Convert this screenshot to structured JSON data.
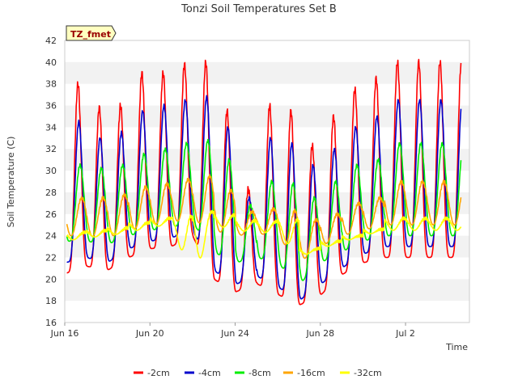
{
  "chart_data": {
    "type": "line",
    "title": "Tonzi Soil Temperatures Set B",
    "xlabel": "Time",
    "ylabel": "Soil Temperature (C)",
    "site_badge": "TZ_fmet",
    "ylim": [
      16,
      42
    ],
    "yticks": [
      16,
      18,
      20,
      22,
      24,
      26,
      28,
      30,
      32,
      34,
      36,
      38,
      40,
      42
    ],
    "x_range_days": [
      0,
      19
    ],
    "xticks": [
      {
        "day": 0,
        "label": "Jun 16"
      },
      {
        "day": 4,
        "label": "Jun 20"
      },
      {
        "day": 8,
        "label": "Jun 24"
      },
      {
        "day": 12,
        "label": "Jun 28"
      },
      {
        "day": 16,
        "label": "Jul 2"
      }
    ],
    "grid": "horizontal bands",
    "legend_position": "bottom",
    "series": [
      {
        "name": "-2cm",
        "color": "#ff0000",
        "daily_max": [
          38.0,
          35.8,
          36.0,
          39.0,
          39.0,
          39.8,
          40.0,
          35.5,
          28.3,
          36.0,
          35.5,
          32.3,
          35.0,
          37.5,
          38.5,
          40.0
        ],
        "daily_min": [
          20.5,
          21.2,
          20.8,
          22.0,
          22.8,
          23.0,
          24.0,
          20.0,
          18.8,
          19.6,
          18.6,
          17.6,
          18.5,
          20.4,
          21.5,
          22.0
        ]
      },
      {
        "name": "-4cm",
        "color": "#0000cc",
        "daily_max": [
          34.5,
          33.0,
          33.5,
          35.5,
          36.0,
          36.5,
          36.8,
          34.0,
          27.5,
          33.0,
          32.5,
          30.5,
          32.0,
          34.0,
          35.0,
          36.5
        ],
        "daily_min": [
          21.5,
          22.0,
          21.5,
          22.8,
          23.5,
          23.8,
          24.5,
          20.8,
          19.5,
          20.3,
          19.3,
          18.0,
          19.5,
          21.0,
          22.3,
          23.0
        ]
      },
      {
        "name": "-8cm",
        "color": "#00ee00",
        "daily_max": [
          30.5,
          30.2,
          30.5,
          31.5,
          32.0,
          32.5,
          32.8,
          31.0,
          26.8,
          29.0,
          28.8,
          27.5,
          29.0,
          30.5,
          31.0,
          32.5
        ],
        "daily_min": [
          23.5,
          23.5,
          23.2,
          24.0,
          24.5,
          24.8,
          25.2,
          22.5,
          21.5,
          22.0,
          21.5,
          19.5,
          21.5,
          22.5,
          23.5,
          24.0
        ]
      },
      {
        "name": "-16cm",
        "color": "#ffa500",
        "daily_max": [
          27.5,
          27.5,
          27.8,
          28.5,
          28.8,
          29.2,
          29.5,
          28.2,
          26.2,
          26.5,
          26.3,
          25.5,
          26.0,
          27.0,
          27.5,
          29.0
        ],
        "daily_min": [
          24.0,
          24.0,
          23.8,
          24.5,
          25.0,
          25.3,
          25.5,
          24.5,
          24.0,
          24.2,
          24.0,
          21.5,
          23.0,
          24.0,
          24.5,
          25.0
        ]
      },
      {
        "name": "-32cm",
        "color": "#ffff00",
        "daily_max": [
          24.3,
          24.5,
          24.7,
          25.2,
          25.6,
          25.8,
          26.2,
          25.9,
          25.4,
          25.3,
          25.5,
          22.8,
          23.5,
          24.0,
          24.6,
          25.6
        ],
        "daily_min": [
          23.5,
          23.8,
          24.0,
          24.3,
          24.8,
          25.0,
          20.0,
          25.0,
          24.5,
          24.3,
          24.3,
          22.0,
          22.8,
          23.4,
          24.0,
          24.5
        ]
      }
    ]
  }
}
